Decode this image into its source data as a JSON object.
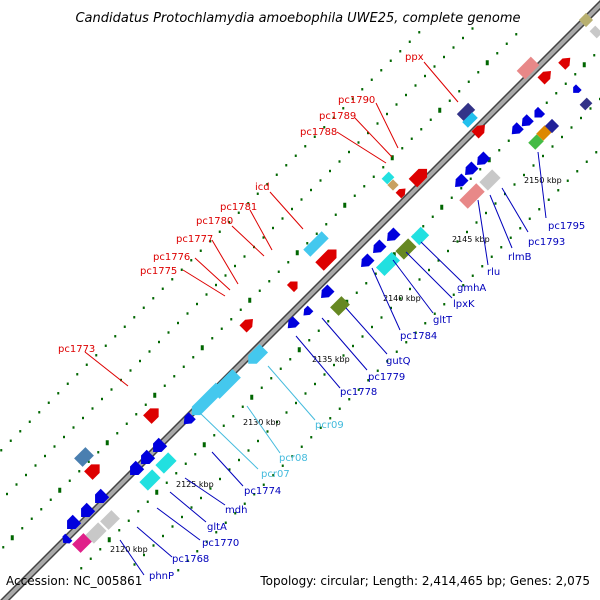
{
  "title": "Candidatus Protochlamydia amoebophila UWE25, complete genome",
  "accession": "Accession: NC_005861",
  "summary": "Topology: circular; Length: 2,414,465 bp; Genes: 2,075",
  "colors": {
    "forward_label": "#dd0000",
    "reverse_label": "#0000bb",
    "rna_label": "#44bbdd",
    "backbone": "#999999",
    "backbone_edge": "#444444",
    "tick": "#006600"
  },
  "kbp_ticks": [
    {
      "label": "2120 kbp"
    },
    {
      "label": "2125 kbp"
    },
    {
      "label": "2130 kbp"
    },
    {
      "label": "2135 kbp"
    },
    {
      "label": "2140 kbp"
    },
    {
      "label": "2145 kbp"
    },
    {
      "label": "2150 kbp"
    }
  ],
  "forward_labels": [
    {
      "text": "pc1773"
    },
    {
      "text": "pc1775"
    },
    {
      "text": "pc1776"
    },
    {
      "text": "pc1777"
    },
    {
      "text": "pc1780"
    },
    {
      "text": "pc1781"
    },
    {
      "text": "icd"
    },
    {
      "text": "pc1788"
    },
    {
      "text": "pc1789"
    },
    {
      "text": "pc1790"
    },
    {
      "text": "ppx"
    }
  ],
  "reverse_labels": [
    {
      "text": "phnP"
    },
    {
      "text": "pc1768"
    },
    {
      "text": "pc1770"
    },
    {
      "text": "gltA"
    },
    {
      "text": "mdh"
    },
    {
      "text": "pc1774"
    },
    {
      "text": "pcr07"
    },
    {
      "text": "pcr08"
    },
    {
      "text": "pcr09"
    },
    {
      "text": "pc1778"
    },
    {
      "text": "pc1779"
    },
    {
      "text": "gutQ"
    },
    {
      "text": "pc1784"
    },
    {
      "text": "gltT"
    },
    {
      "text": "lpxK"
    },
    {
      "text": "gmhA"
    },
    {
      "text": "rlu"
    },
    {
      "text": "rlmB"
    },
    {
      "text": "pc1793"
    },
    {
      "text": "pc1795"
    }
  ]
}
